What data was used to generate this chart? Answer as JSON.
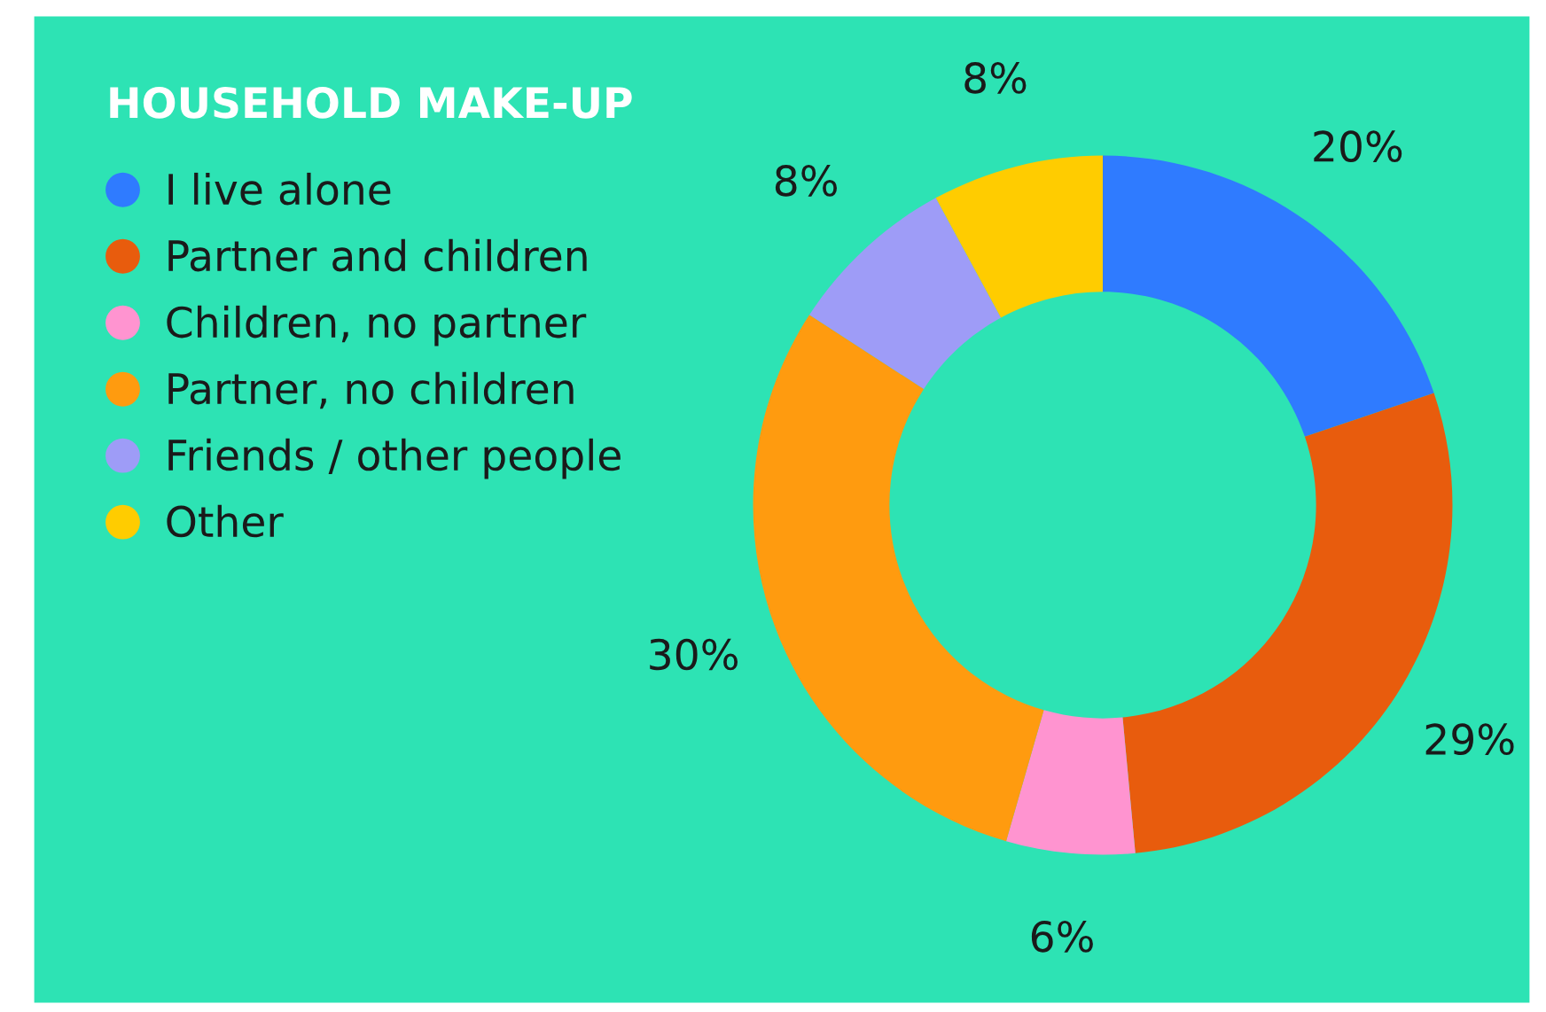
{
  "chart_data": {
    "type": "donut",
    "title": "HOUSEHOLD MAKE-UP",
    "categories": [
      "I live alone",
      "Partner and children",
      "Children, no partner",
      "Partner, no children",
      "Friends / other people",
      "Other"
    ],
    "values": [
      20,
      29,
      6,
      30,
      8,
      8
    ],
    "value_labels": [
      "20%",
      "29%",
      "6%",
      "30%",
      "8%",
      "8%"
    ],
    "colors": [
      "#2f7bff",
      "#e85c0d",
      "#ff94d0",
      "#ff9b0f",
      "#9e9cf7",
      "#ffcc00"
    ],
    "legend": "top left"
  }
}
